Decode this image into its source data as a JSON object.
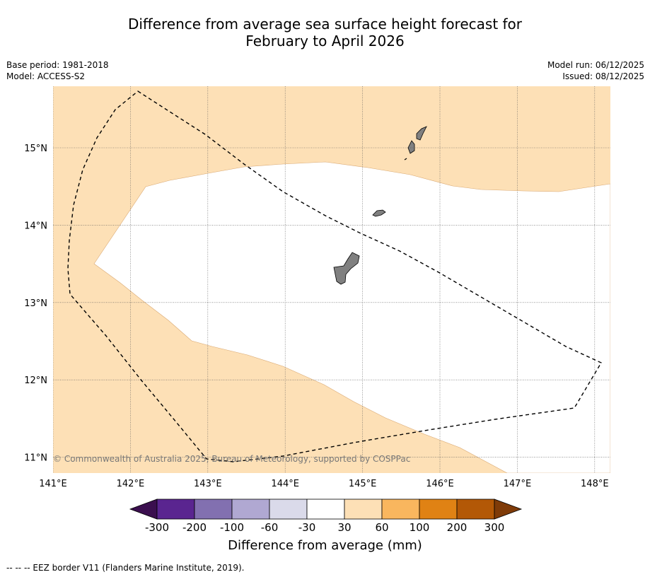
{
  "title": {
    "line1": "Difference from average sea surface height forecast for",
    "line2": "February to April 2026"
  },
  "meta": {
    "base_period": "Base period: 1981-2018",
    "model": "Model: ACCESS-S2",
    "model_run": "Model run: 06/12/2025",
    "issued": "Issued: 08/12/2025"
  },
  "map": {
    "lon_labels": [
      "141°E",
      "142°E",
      "143°E",
      "144°E",
      "145°E",
      "146°E",
      "147°E",
      "148°E"
    ],
    "lat_labels": [
      "15°N",
      "14°N",
      "13°N",
      "12°N",
      "11°N"
    ],
    "copyright": "© Commonwealth of Australia 2025, Bureau of Meteorology, supported by COSPPac",
    "colors": {
      "ocean_positive": "#fde0b6",
      "ocean_neutral": "#ffffff",
      "land": "#808080",
      "eez": "#000000"
    }
  },
  "colorbar": {
    "tick_labels": [
      "-300",
      "-200",
      "-100",
      "-60",
      "-30",
      "30",
      "60",
      "100",
      "200",
      "300"
    ],
    "colors": [
      "#3b0f4f",
      "#5a2590",
      "#8270b0",
      "#b0a8d2",
      "#dadaea",
      "#ffffff",
      "#fde0b6",
      "#f9b65e",
      "#e08214",
      "#b35806",
      "#7f3b08"
    ],
    "title": "Difference from average (mm)"
  },
  "footnote": "--  --  -- EEZ border V11 (Flanders Marine Institute, 2019)."
}
